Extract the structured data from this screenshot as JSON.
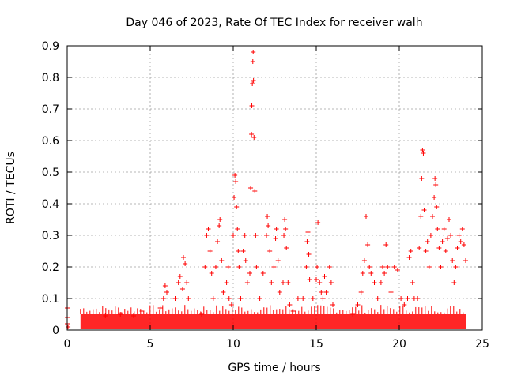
{
  "chart_data": {
    "type": "scatter",
    "title": "Day 046 of 2023, Rate Of TEC Index for receiver walh",
    "xlabel": "GPS time / hours",
    "ylabel": "ROTI / TECUs",
    "xlim": [
      0,
      25
    ],
    "ylim": [
      0,
      0.9
    ],
    "xticks": [
      0,
      5,
      10,
      15,
      20,
      25
    ],
    "yticks": [
      0,
      0.1,
      0.2,
      0.3,
      0.4,
      0.5,
      0.6,
      0.7,
      0.8,
      0.9
    ],
    "grid": true,
    "marker": "+",
    "color": "#ff0000",
    "background_band": {
      "xrange": [
        0.8,
        24.0
      ],
      "yrange": [
        0.0,
        0.05
      ]
    },
    "series": [
      {
        "points": [
          [
            0.0,
            0.07
          ],
          [
            0.0,
            0.04
          ],
          [
            0.0,
            0.02
          ],
          [
            0.05,
            0.01
          ],
          [
            2.3,
            0.045
          ],
          [
            3.2,
            0.05
          ],
          [
            4.0,
            0.045
          ],
          [
            4.5,
            0.06
          ],
          [
            5.6,
            0.07
          ],
          [
            5.8,
            0.1
          ],
          [
            5.9,
            0.14
          ],
          [
            6.0,
            0.12
          ],
          [
            6.5,
            0.1
          ],
          [
            6.7,
            0.15
          ],
          [
            6.8,
            0.17
          ],
          [
            6.95,
            0.13
          ],
          [
            7.0,
            0.23
          ],
          [
            7.1,
            0.21
          ],
          [
            7.2,
            0.15
          ],
          [
            7.3,
            0.1
          ],
          [
            8.1,
            0.05
          ],
          [
            8.3,
            0.2
          ],
          [
            8.4,
            0.3
          ],
          [
            8.5,
            0.32
          ],
          [
            8.6,
            0.25
          ],
          [
            8.7,
            0.18
          ],
          [
            8.8,
            0.1
          ],
          [
            8.95,
            0.2
          ],
          [
            9.05,
            0.28
          ],
          [
            9.15,
            0.33
          ],
          [
            9.2,
            0.35
          ],
          [
            9.3,
            0.22
          ],
          [
            9.4,
            0.12
          ],
          [
            9.6,
            0.15
          ],
          [
            9.7,
            0.2
          ],
          [
            9.75,
            0.1
          ],
          [
            9.9,
            0.08
          ],
          [
            10.0,
            0.3
          ],
          [
            10.05,
            0.42
          ],
          [
            10.1,
            0.49
          ],
          [
            10.15,
            0.47
          ],
          [
            10.2,
            0.39
          ],
          [
            10.25,
            0.32
          ],
          [
            10.3,
            0.25
          ],
          [
            10.35,
            0.2
          ],
          [
            10.45,
            0.1
          ],
          [
            10.6,
            0.25
          ],
          [
            10.7,
            0.3
          ],
          [
            10.75,
            0.22
          ],
          [
            10.85,
            0.15
          ],
          [
            11.0,
            0.18
          ],
          [
            11.05,
            0.45
          ],
          [
            11.1,
            0.62
          ],
          [
            11.12,
            0.71
          ],
          [
            11.15,
            0.78
          ],
          [
            11.18,
            0.85
          ],
          [
            11.2,
            0.88
          ],
          [
            11.22,
            0.79
          ],
          [
            11.25,
            0.61
          ],
          [
            11.3,
            0.44
          ],
          [
            11.35,
            0.3
          ],
          [
            11.4,
            0.2
          ],
          [
            11.6,
            0.1
          ],
          [
            11.8,
            0.18
          ],
          [
            12.0,
            0.3
          ],
          [
            12.05,
            0.36
          ],
          [
            12.1,
            0.33
          ],
          [
            12.2,
            0.25
          ],
          [
            12.3,
            0.15
          ],
          [
            12.45,
            0.2
          ],
          [
            12.55,
            0.29
          ],
          [
            12.6,
            0.32
          ],
          [
            12.7,
            0.22
          ],
          [
            12.8,
            0.12
          ],
          [
            13.0,
            0.15
          ],
          [
            13.05,
            0.3
          ],
          [
            13.1,
            0.35
          ],
          [
            13.15,
            0.32
          ],
          [
            13.2,
            0.26
          ],
          [
            13.3,
            0.15
          ],
          [
            13.4,
            0.08
          ],
          [
            13.6,
            0.06
          ],
          [
            13.9,
            0.1
          ],
          [
            14.2,
            0.1
          ],
          [
            14.4,
            0.2
          ],
          [
            14.45,
            0.28
          ],
          [
            14.5,
            0.31
          ],
          [
            14.55,
            0.24
          ],
          [
            14.6,
            0.16
          ],
          [
            14.8,
            0.1
          ],
          [
            15.0,
            0.16
          ],
          [
            15.05,
            0.2
          ],
          [
            15.1,
            0.34
          ],
          [
            15.2,
            0.15
          ],
          [
            15.3,
            0.12
          ],
          [
            15.4,
            0.1
          ],
          [
            15.5,
            0.17
          ],
          [
            15.6,
            0.12
          ],
          [
            15.8,
            0.2
          ],
          [
            15.9,
            0.15
          ],
          [
            16.0,
            0.08
          ],
          [
            17.2,
            0.05
          ],
          [
            17.5,
            0.08
          ],
          [
            17.7,
            0.12
          ],
          [
            17.8,
            0.18
          ],
          [
            17.9,
            0.22
          ],
          [
            18.0,
            0.36
          ],
          [
            18.1,
            0.27
          ],
          [
            18.2,
            0.2
          ],
          [
            18.3,
            0.18
          ],
          [
            18.5,
            0.15
          ],
          [
            18.7,
            0.1
          ],
          [
            18.9,
            0.15
          ],
          [
            19.0,
            0.2
          ],
          [
            19.1,
            0.18
          ],
          [
            19.2,
            0.27
          ],
          [
            19.3,
            0.2
          ],
          [
            19.5,
            0.12
          ],
          [
            19.7,
            0.2
          ],
          [
            19.9,
            0.19
          ],
          [
            20.1,
            0.1
          ],
          [
            20.3,
            0.08
          ],
          [
            20.5,
            0.1
          ],
          [
            20.6,
            0.23
          ],
          [
            20.7,
            0.25
          ],
          [
            20.8,
            0.15
          ],
          [
            20.9,
            0.1
          ],
          [
            21.1,
            0.1
          ],
          [
            21.2,
            0.26
          ],
          [
            21.3,
            0.36
          ],
          [
            21.35,
            0.48
          ],
          [
            21.4,
            0.57
          ],
          [
            21.45,
            0.56
          ],
          [
            21.5,
            0.38
          ],
          [
            21.6,
            0.25
          ],
          [
            21.7,
            0.28
          ],
          [
            21.8,
            0.2
          ],
          [
            21.9,
            0.3
          ],
          [
            22.0,
            0.36
          ],
          [
            22.1,
            0.42
          ],
          [
            22.15,
            0.48
          ],
          [
            22.2,
            0.46
          ],
          [
            22.25,
            0.39
          ],
          [
            22.3,
            0.32
          ],
          [
            22.4,
            0.26
          ],
          [
            22.5,
            0.2
          ],
          [
            22.6,
            0.28
          ],
          [
            22.7,
            0.32
          ],
          [
            22.8,
            0.25
          ],
          [
            22.9,
            0.29
          ],
          [
            23.0,
            0.35
          ],
          [
            23.1,
            0.3
          ],
          [
            23.2,
            0.22
          ],
          [
            23.3,
            0.15
          ],
          [
            23.4,
            0.2
          ],
          [
            23.5,
            0.26
          ],
          [
            23.6,
            0.3
          ],
          [
            23.7,
            0.28
          ],
          [
            23.8,
            0.32
          ],
          [
            23.9,
            0.27
          ],
          [
            24.0,
            0.22
          ]
        ]
      }
    ]
  }
}
